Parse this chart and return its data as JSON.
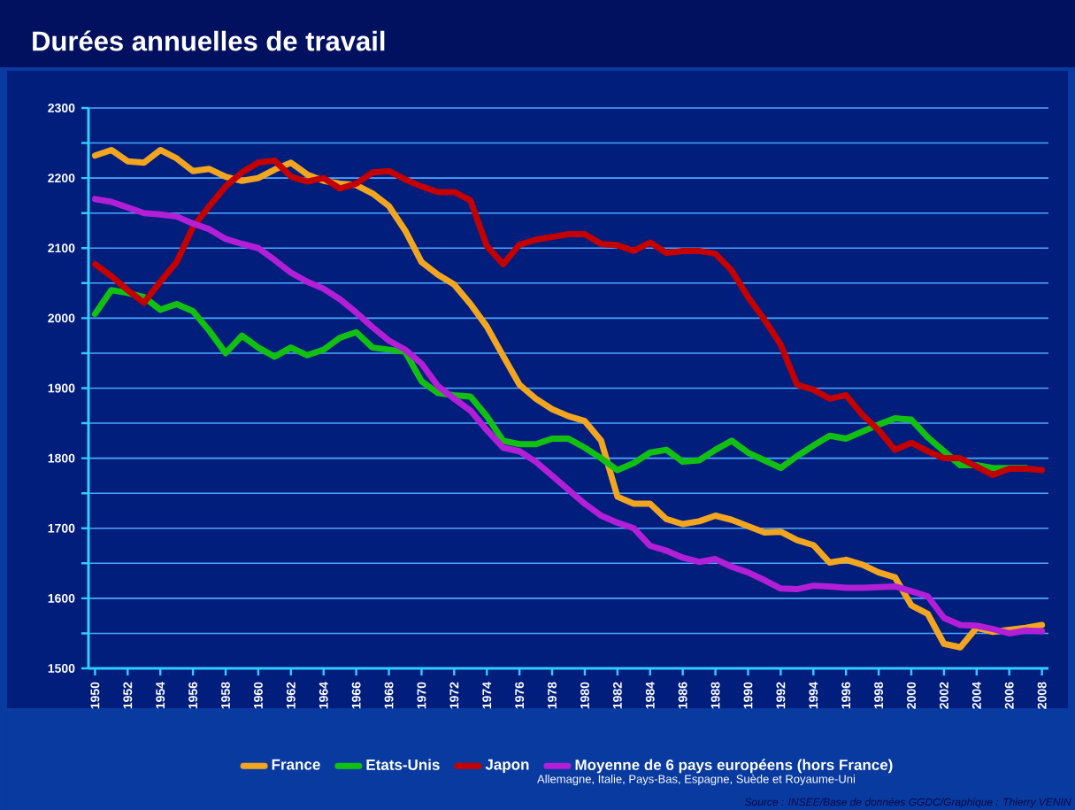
{
  "chart_data": {
    "type": "line",
    "title": "Durées annuelles de travail",
    "x": [
      1950,
      1951,
      1952,
      1953,
      1954,
      1955,
      1956,
      1957,
      1958,
      1959,
      1960,
      1961,
      1962,
      1963,
      1964,
      1965,
      1966,
      1967,
      1968,
      1969,
      1970,
      1971,
      1972,
      1973,
      1974,
      1975,
      1976,
      1977,
      1978,
      1979,
      1980,
      1981,
      1982,
      1983,
      1984,
      1985,
      1986,
      1987,
      1988,
      1989,
      1990,
      1991,
      1992,
      1993,
      1994,
      1995,
      1996,
      1997,
      1998,
      1999,
      2000,
      2001,
      2002,
      2003,
      2004,
      2005,
      2006,
      2007,
      2008
    ],
    "series": [
      {
        "name": "France",
        "color": "#f2a620",
        "values": [
          2232,
          2240,
          2224,
          2222,
          2240,
          2228,
          2210,
          2213,
          2202,
          2196,
          2200,
          2212,
          2222,
          2205,
          2196,
          2192,
          2190,
          2178,
          2160,
          2125,
          2080,
          2062,
          2048,
          2020,
          1988,
          1946,
          1905,
          1885,
          1870,
          1860,
          1853,
          1825,
          1745,
          1735,
          1735,
          1713,
          1706,
          1710,
          1718,
          1712,
          1703,
          1694,
          1695,
          1683,
          1676,
          1651,
          1655,
          1648,
          1637,
          1630,
          1590,
          1578,
          1535,
          1530,
          1558,
          1552,
          1555,
          1558,
          1562
        ]
      },
      {
        "name": "Etats-Unis",
        "color": "#12c012",
        "values": [
          2006,
          2040,
          2036,
          2030,
          2012,
          2020,
          2010,
          1982,
          1950,
          1975,
          1958,
          1945,
          1958,
          1947,
          1955,
          1972,
          1980,
          1958,
          1955,
          1952,
          1910,
          1893,
          1890,
          1888,
          1860,
          1825,
          1820,
          1820,
          1828,
          1828,
          1815,
          1800,
          1783,
          1793,
          1808,
          1812,
          1795,
          1797,
          1812,
          1825,
          1808,
          1797,
          1786,
          1803,
          1818,
          1832,
          1828,
          1838,
          1848,
          1857,
          1855,
          1830,
          1810,
          1790,
          1790,
          1786,
          1786,
          1786,
          null
        ]
      },
      {
        "name": "Japon",
        "color": "#c40000",
        "values": [
          2077,
          2060,
          2040,
          2022,
          2052,
          2080,
          2130,
          2160,
          2188,
          2208,
          2222,
          2225,
          2202,
          2195,
          2200,
          2185,
          2192,
          2208,
          2210,
          2198,
          2188,
          2180,
          2180,
          2168,
          2103,
          2077,
          2105,
          2112,
          2116,
          2120,
          2120,
          2106,
          2104,
          2096,
          2108,
          2093,
          2096,
          2096,
          2092,
          2068,
          2030,
          1998,
          1962,
          1905,
          1898,
          1885,
          1890,
          1862,
          1840,
          1812,
          1822,
          1810,
          1800,
          1800,
          1788,
          1776,
          1785,
          1785,
          1783
        ]
      },
      {
        "name": "Moyenne de 6 pays européens (hors France)",
        "color": "#b21fd6",
        "values": [
          2170,
          2166,
          2158,
          2150,
          2148,
          2145,
          2135,
          2127,
          2113,
          2106,
          2100,
          2083,
          2065,
          2052,
          2042,
          2027,
          2008,
          1987,
          1968,
          1955,
          1935,
          1903,
          1885,
          1868,
          1840,
          1815,
          1810,
          1795,
          1775,
          1755,
          1735,
          1718,
          1708,
          1700,
          1675,
          1668,
          1658,
          1652,
          1656,
          1645,
          1637,
          1626,
          1614,
          1613,
          1618,
          1617,
          1615,
          1615,
          1616,
          1617,
          1610,
          1603,
          1572,
          1562,
          1561,
          1556,
          1550,
          1554,
          1553
        ]
      }
    ],
    "xlim": [
      1949.6,
      2008.4
    ],
    "xticks": [
      1950,
      1952,
      1954,
      1956,
      1958,
      1960,
      1962,
      1964,
      1966,
      1968,
      1970,
      1972,
      1974,
      1976,
      1978,
      1980,
      1982,
      1984,
      1986,
      1988,
      1990,
      1992,
      1994,
      1996,
      1998,
      2000,
      2002,
      2004,
      2006,
      2008
    ],
    "ylim": [
      1500,
      2300
    ],
    "yticks": [
      1500,
      {
        "value": 1550,
        "label": null
      },
      1600,
      {
        "value": 1650,
        "label": null
      },
      1700,
      {
        "value": 1750,
        "label": null
      },
      1800,
      {
        "value": 1850,
        "label": null
      },
      1900,
      {
        "value": 1950,
        "label": null
      },
      2000,
      {
        "value": 2050,
        "label": null
      },
      2100,
      {
        "value": 2150,
        "label": null
      },
      2200,
      {
        "value": 2250,
        "label": null
      },
      2300
    ],
    "grid": "y",
    "legend": "bottom",
    "annotations": [
      "Allemagne, Italie, Pays-Bas, Espagne, Suède et Royaume-Uni",
      "Source : INSEE/Base de données GGDC/Graphique : Thierry VENIN"
    ]
  }
}
